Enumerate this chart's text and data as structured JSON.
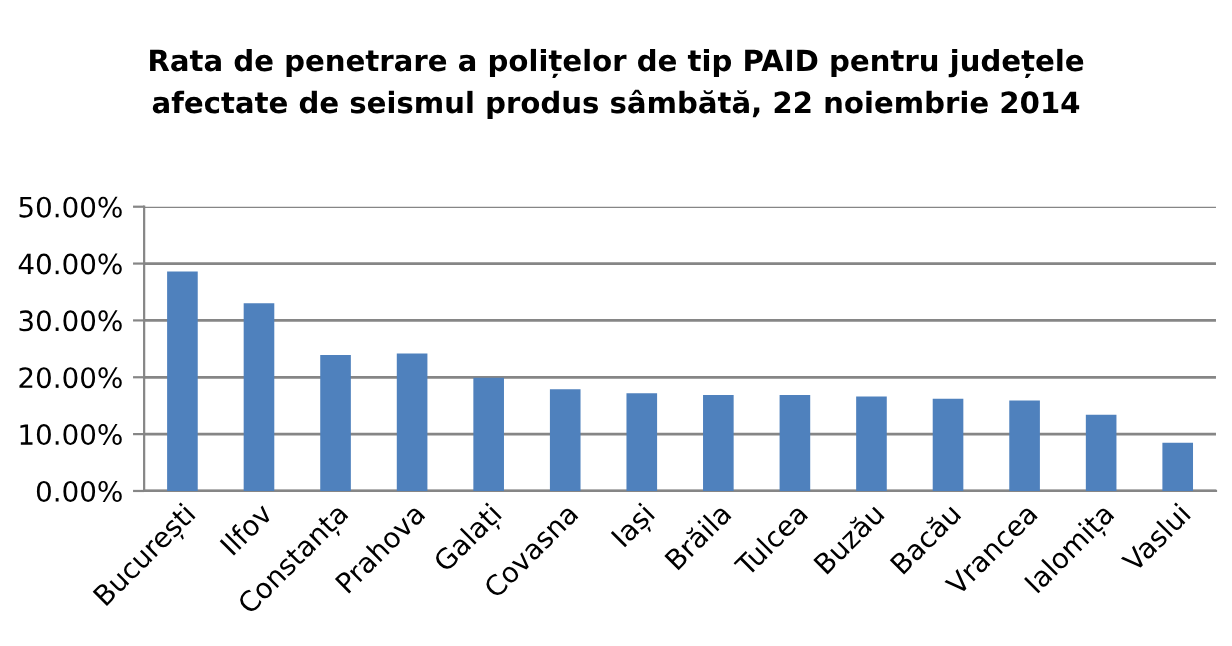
{
  "chart_data": {
    "type": "bar",
    "title": "Rata de penetrare a polițelor de tip PAID pentru județele\nafectate de seismul produs sâmbătă, 22 noiembrie 2014",
    "categories": [
      "București",
      "Ilfov",
      "Constanța",
      "Prahova",
      "Galați",
      "Covasna",
      "Iași",
      "Brăila",
      "Tulcea",
      "Buzău",
      "Bacău",
      "Vrancea",
      "Ialomița",
      "Vaslui"
    ],
    "values": [
      38.6,
      33.0,
      23.9,
      24.2,
      19.9,
      17.9,
      17.2,
      16.9,
      16.9,
      16.6,
      16.2,
      15.9,
      13.4,
      8.5
    ],
    "color": "#4f81bd",
    "ylim": [
      0,
      50
    ],
    "yticks": [
      {
        "value": 0,
        "label": "0.00%"
      },
      {
        "value": 10,
        "label": "10.00%"
      },
      {
        "value": 20,
        "label": "20.00%"
      },
      {
        "value": 30,
        "label": "30.00%"
      },
      {
        "value": 40,
        "label": "40.00%"
      },
      {
        "value": 50,
        "label": "50.00%"
      }
    ],
    "grid": "y"
  }
}
